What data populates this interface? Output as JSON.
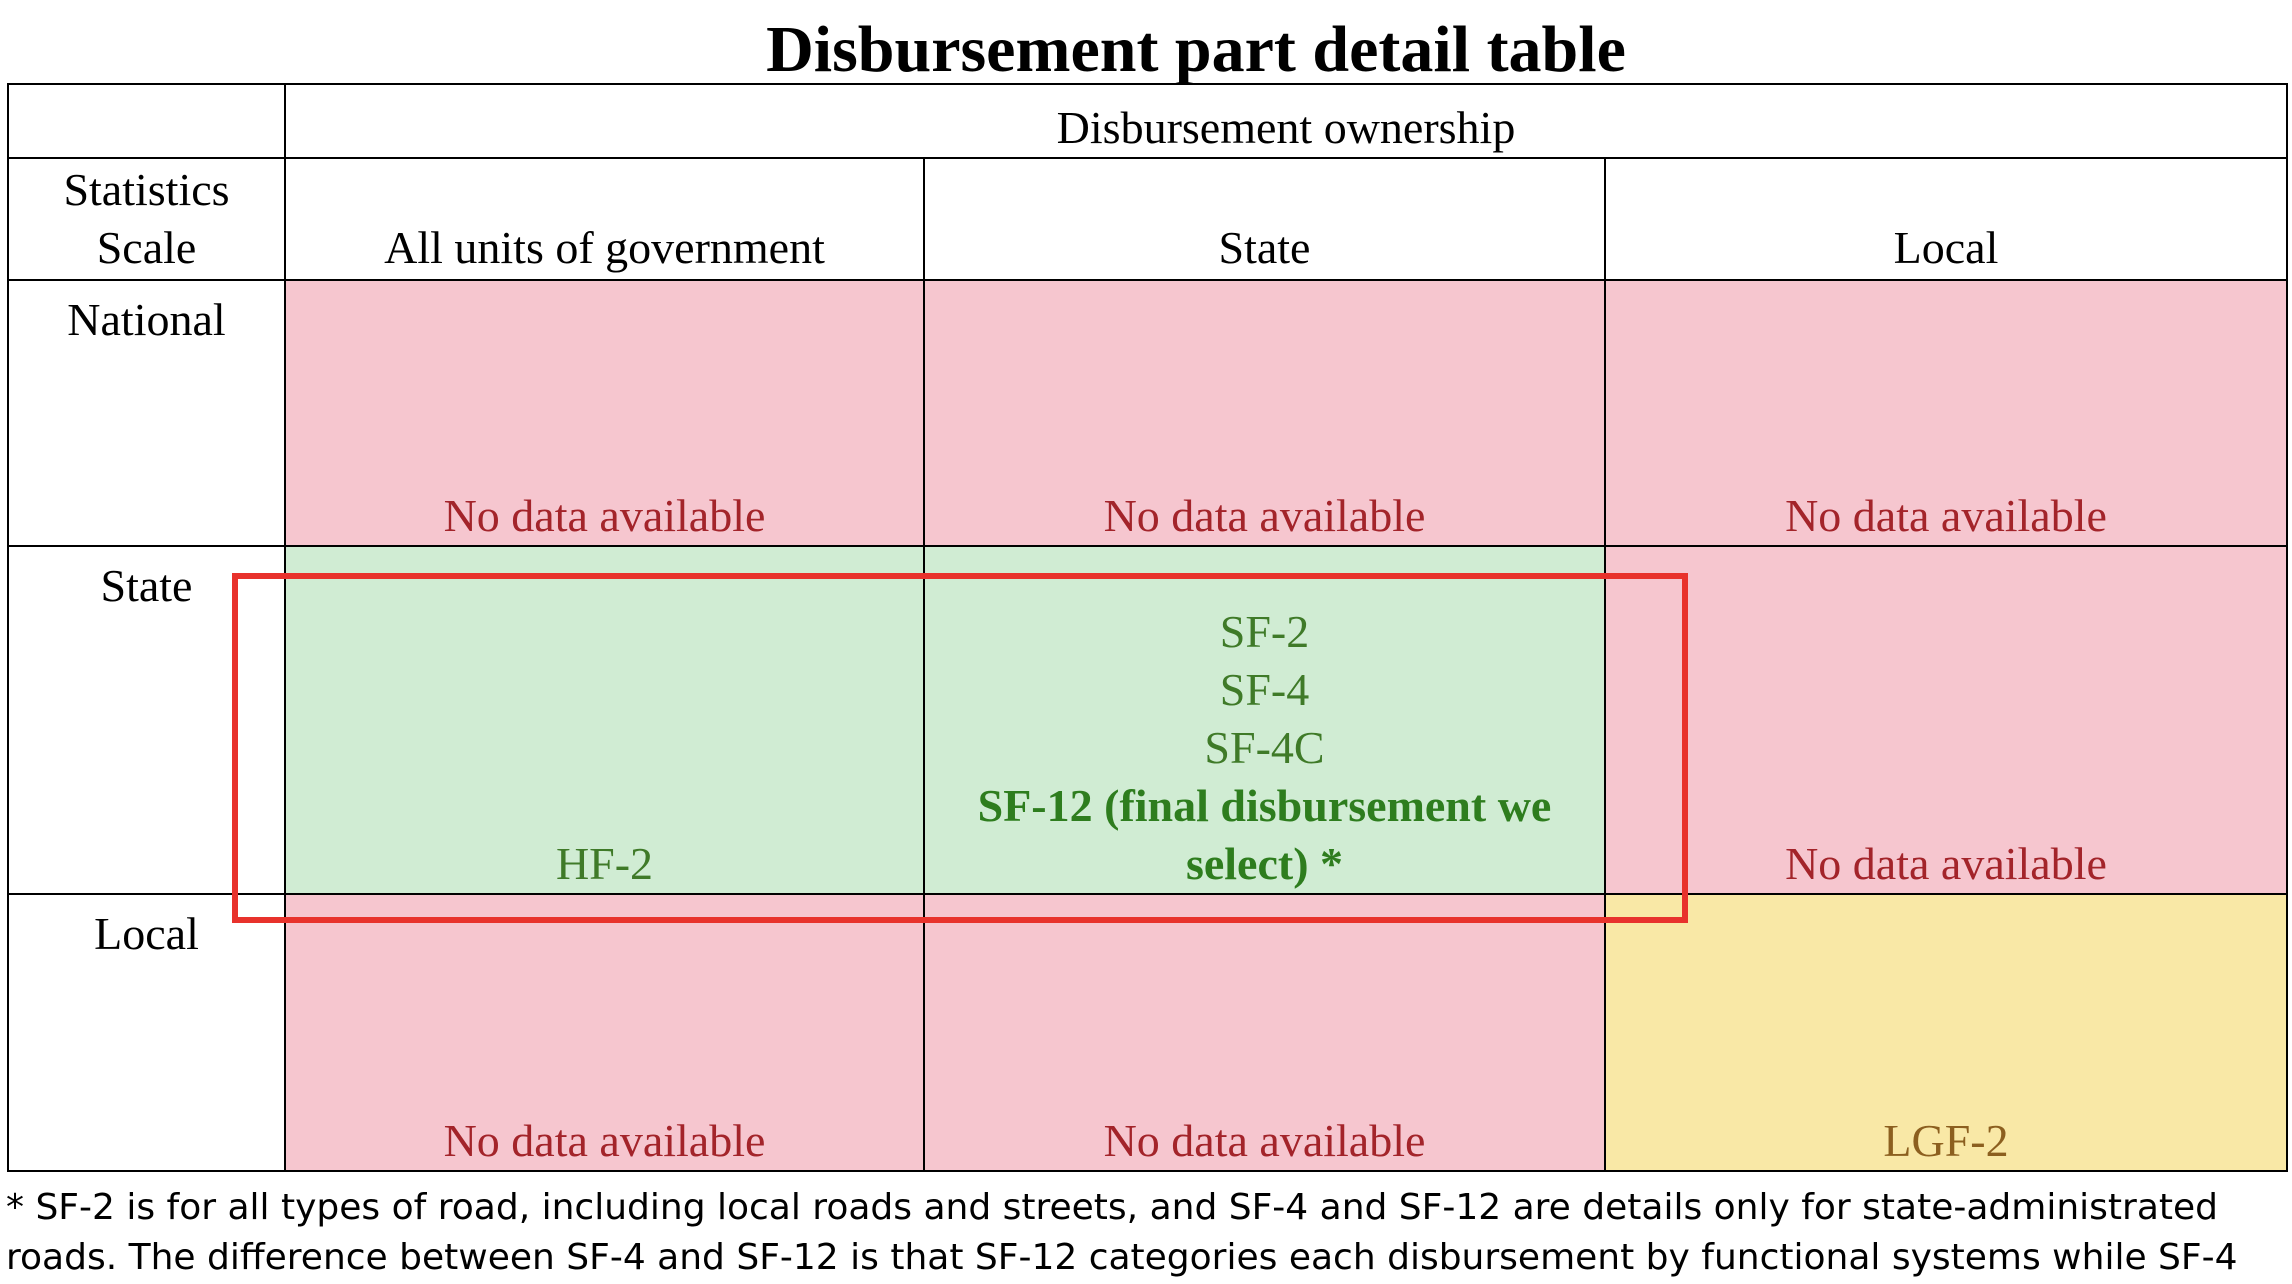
{
  "title": "Disbursement part detail table",
  "table": {
    "ownership_header": "Disbursement ownership",
    "stat_header_line1": "Statistics",
    "stat_header_line2": "Scale",
    "columns": [
      "All units of government",
      "State",
      "Local"
    ],
    "rows": [
      {
        "label": "National",
        "cells": [
          "No data available",
          "No data available",
          "No data available"
        ]
      },
      {
        "label": "State",
        "cells": [
          "HF-2",
          [
            "SF-2",
            "SF-4",
            "SF-4C",
            "SF-12 (final disbursement we",
            "select) *"
          ],
          "No data available"
        ]
      },
      {
        "label": "Local",
        "cells": [
          "No data available",
          "No data available",
          "LGF-2"
        ]
      }
    ]
  },
  "colors": {
    "no_data_fill": "#f6c6cf",
    "no_data_text": "#a3242a",
    "available_fill": "#d0ecd3",
    "available_text": "#3f7a28",
    "local_fill": "#f9e8a6",
    "local_text": "#8c5f1f",
    "highlight_border": "#e8322c"
  },
  "footnote": {
    "line1": "* SF-2 is for all types of road, including local roads and streets, and SF-4 and SF-12 are details only for state-administrated",
    "line2": "roads. The difference between SF-4 and SF-12 is that SF-12 categories each disbursement by functional systems while SF-4"
  }
}
